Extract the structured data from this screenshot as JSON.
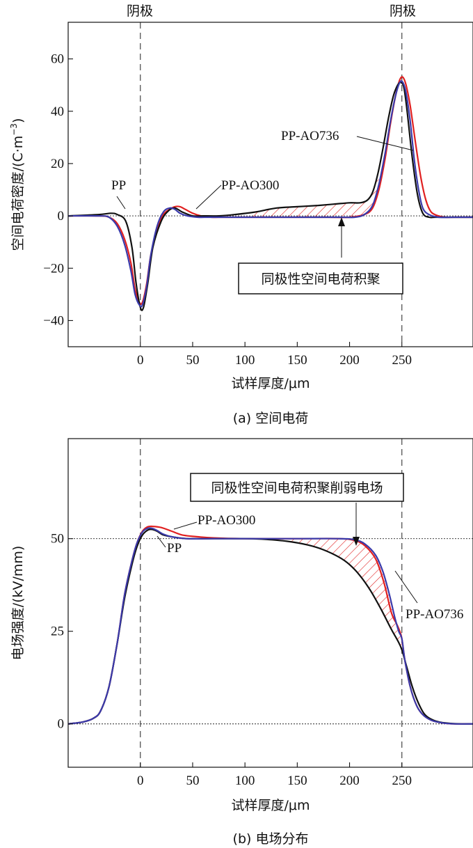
{
  "panel_a": {
    "top_labels": [
      "阴极",
      "阴极"
    ],
    "caption": "(a) 空间电荷",
    "ylabel_main": "空间电荷密度/(C·m",
    "ylabel_exp": "−3",
    "ylabel_close": ")",
    "annotations": {
      "pp": "PP",
      "pp_ao300": "PP-AO300",
      "pp_ao736": "PP-AO736",
      "box": "同极性空间电荷积聚"
    },
    "chart": {
      "type": "line",
      "xlabel": "试样厚度/μm",
      "ylabel": "空间电荷密度/(C·m−3)",
      "xlim": [
        -69,
        318
      ],
      "ylim": [
        -50,
        74
      ],
      "xticks": [
        0,
        50,
        100,
        150,
        200,
        250
      ],
      "yticks": [
        60,
        40,
        20,
        0,
        -20,
        -40
      ],
      "ytick_labels": [
        "60",
        "40",
        "20",
        "0",
        "−20",
        "−40"
      ],
      "dashed_verticals": [
        0,
        250
      ],
      "dotted_horizontals": [
        0
      ],
      "series": [
        {
          "name": "PP",
          "color": "#111111",
          "x": [
            -69,
            -40,
            -28,
            -22,
            -14,
            -8,
            -4,
            0,
            3,
            7,
            12,
            20,
            27,
            33,
            40,
            50,
            60,
            75,
            90,
            110,
            130,
            150,
            170,
            185,
            200,
            210,
            217,
            222,
            227,
            232,
            237,
            242,
            246,
            249,
            252,
            255,
            260,
            265,
            270,
            276,
            282,
            290,
            300,
            318
          ],
          "y": [
            0,
            0.5,
            1,
            0.5,
            -2,
            -12,
            -26,
            -35,
            -35,
            -26,
            -12,
            -2,
            2,
            3,
            1.5,
            0,
            0,
            0,
            0.5,
            1.5,
            3,
            3.5,
            4,
            4.5,
            5,
            5,
            6,
            9,
            16,
            26,
            37,
            46,
            50,
            51,
            49,
            40,
            22,
            8,
            1,
            -0.5,
            -0.5,
            -0.5,
            -0.5,
            -0.5
          ]
        },
        {
          "name": "PP-AO300",
          "color": "#e02020",
          "x": [
            -69,
            -40,
            -30,
            -22,
            -15,
            -9,
            -5,
            -1,
            2,
            6,
            10,
            16,
            22,
            28,
            33,
            38,
            43,
            50,
            58,
            68,
            80,
            100,
            120,
            150,
            180,
            200,
            214,
            222,
            228,
            234,
            239,
            244,
            248,
            251,
            254,
            258,
            263,
            268,
            273,
            278,
            285,
            292,
            300,
            318
          ],
          "y": [
            0,
            0,
            -0.5,
            -3,
            -9,
            -18,
            -28,
            -33,
            -33,
            -26,
            -15,
            -5,
            0.5,
            2.5,
            3.5,
            3.5,
            2.5,
            1,
            0,
            -0.5,
            -0.5,
            -0.5,
            -0.5,
            -0.5,
            -0.5,
            -0.5,
            0.5,
            3,
            10,
            22,
            35,
            46,
            52,
            53,
            50,
            42,
            28,
            15,
            6,
            1.5,
            0,
            -0.5,
            -0.5,
            -0.5
          ]
        },
        {
          "name": "PP-AO736",
          "color": "#3a3aaa",
          "x": [
            -69,
            -40,
            -30,
            -22,
            -15,
            -9,
            -5,
            -1,
            2,
            6,
            10,
            16,
            22,
            28,
            33,
            38,
            45,
            55,
            65,
            80,
            100,
            150,
            190,
            205,
            214,
            222,
            228,
            234,
            239,
            244,
            248,
            251,
            254,
            258,
            262,
            266,
            270,
            276,
            285,
            300,
            318
          ],
          "y": [
            0,
            0,
            -0.5,
            -4,
            -11,
            -21,
            -30,
            -34,
            -34,
            -27,
            -15,
            -4,
            1.5,
            3,
            2.5,
            1,
            0,
            -0.5,
            -0.5,
            -0.5,
            -0.5,
            -0.5,
            -0.5,
            -0.5,
            0.5,
            4,
            12,
            24,
            36,
            46,
            51,
            51,
            47,
            36,
            21,
            10,
            3,
            0.5,
            -0.5,
            -0.5,
            -0.5
          ]
        }
      ],
      "hatch": {
        "from": 105,
        "to": 228,
        "upper": "PP",
        "lower": "PP-AO736"
      }
    }
  },
  "panel_b": {
    "caption": "(b) 电场分布",
    "annotations": {
      "pp": "PP",
      "pp_ao300": "PP-AO300",
      "pp_ao736": "PP-AO736",
      "box": "同极性空间电荷积聚削弱电场"
    },
    "chart": {
      "type": "line",
      "xlabel": "试样厚度/μm",
      "ylabel": "电场强度/(kV/mm)",
      "xlim": [
        -69,
        318
      ],
      "ylim": [
        -11.7,
        77
      ],
      "xticks": [
        0,
        50,
        100,
        150,
        200,
        250
      ],
      "yticks": [
        50,
        25,
        0
      ],
      "ytick_labels": [
        "50",
        "25",
        "0"
      ],
      "dashed_verticals": [
        0,
        250
      ],
      "dotted_horizontals": [
        50,
        0
      ],
      "series": [
        {
          "name": "PP",
          "color": "#111111",
          "x": [
            -69,
            -55,
            -45,
            -38,
            -30,
            -22,
            -15,
            -8,
            -3,
            2,
            7,
            11,
            16,
            22,
            30,
            45,
            70,
            100,
            120,
            140,
            160,
            175,
            190,
            200,
            210,
            220,
            230,
            240,
            246,
            250,
            255,
            260,
            266,
            272,
            280,
            290,
            305,
            318
          ],
          "y": [
            0,
            0.5,
            1.5,
            3.5,
            10,
            22,
            34,
            43,
            48,
            51,
            52.3,
            52.5,
            52,
            51,
            50.5,
            50,
            50,
            50,
            49.8,
            49.3,
            48.3,
            47,
            45,
            43,
            40,
            36,
            31,
            25.5,
            22.5,
            20,
            15,
            10,
            5.5,
            2.5,
            1,
            0.3,
            0,
            0
          ]
        },
        {
          "name": "PP-AO300",
          "color": "#e02020",
          "x": [
            -69,
            -55,
            -45,
            -38,
            -30,
            -22,
            -15,
            -8,
            -3,
            2,
            7,
            12,
            20,
            30,
            40,
            55,
            70,
            100,
            150,
            190,
            205,
            215,
            225,
            233,
            240,
            245,
            248,
            250,
            253,
            258,
            264,
            270,
            278,
            288,
            300,
            318
          ],
          "y": [
            0,
            0.5,
            1.5,
            3.5,
            10,
            22,
            35,
            44,
            49,
            52,
            53.2,
            53.3,
            53,
            52,
            51,
            50.5,
            50.2,
            50,
            50,
            50,
            49.5,
            48,
            44.5,
            38,
            30,
            27,
            25,
            23,
            17,
            10,
            5,
            2.5,
            1,
            0.3,
            0,
            0
          ]
        },
        {
          "name": "PP-AO736",
          "color": "#3a3aaa",
          "x": [
            -69,
            -55,
            -45,
            -38,
            -30,
            -22,
            -15,
            -8,
            -3,
            2,
            7,
            11,
            16,
            22,
            30,
            45,
            70,
            100,
            150,
            190,
            205,
            215,
            225,
            232,
            238,
            243,
            247,
            250,
            253,
            258,
            264,
            270,
            278,
            288,
            300,
            318
          ],
          "y": [
            0,
            0.5,
            1.5,
            3.5,
            10,
            22,
            35,
            44,
            49,
            51.8,
            52.8,
            52.8,
            52.2,
            51.2,
            50.5,
            50,
            50,
            50,
            50,
            50,
            49.7,
            48.5,
            45.5,
            41,
            35,
            29,
            25,
            23,
            17,
            10,
            5,
            2.5,
            1,
            0.3,
            0,
            0
          ]
        }
      ],
      "hatch": {
        "from": 140,
        "to": 250,
        "upper": "PP-AO736",
        "lower": "PP"
      }
    }
  }
}
